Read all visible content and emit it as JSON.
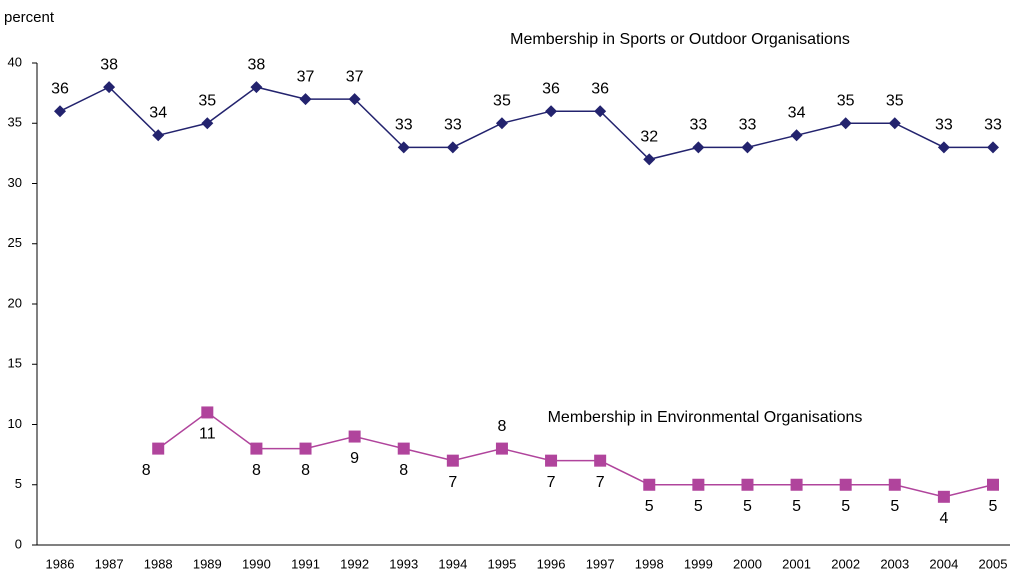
{
  "chart_data": {
    "type": "line",
    "y_label": "percent",
    "categories": [
      "1986",
      "1987",
      "1988",
      "1989",
      "1990",
      "1991",
      "1992",
      "1993",
      "1994",
      "1995",
      "1996",
      "1997",
      "1998",
      "1999",
      "2000",
      "2001",
      "2002",
      "2003",
      "2004",
      "2005"
    ],
    "series": [
      {
        "name": "Membership in Sports or Outdoor Organisations",
        "color": "#23236e",
        "marker": "diamond",
        "values": [
          36,
          38,
          34,
          35,
          38,
          37,
          37,
          33,
          33,
          35,
          36,
          36,
          32,
          33,
          33,
          34,
          35,
          35,
          33,
          33
        ]
      },
      {
        "name": "Membership in Environmental Organisations",
        "color": "#b0449c",
        "marker": "square",
        "values": [
          null,
          null,
          8,
          11,
          8,
          8,
          9,
          8,
          7,
          8,
          7,
          7,
          5,
          5,
          5,
          5,
          5,
          5,
          4,
          5
        ]
      }
    ],
    "ylim": [
      0,
      40
    ],
    "yticks": [
      0,
      5,
      10,
      15,
      20,
      25,
      30,
      35,
      40
    ],
    "grid": false
  }
}
